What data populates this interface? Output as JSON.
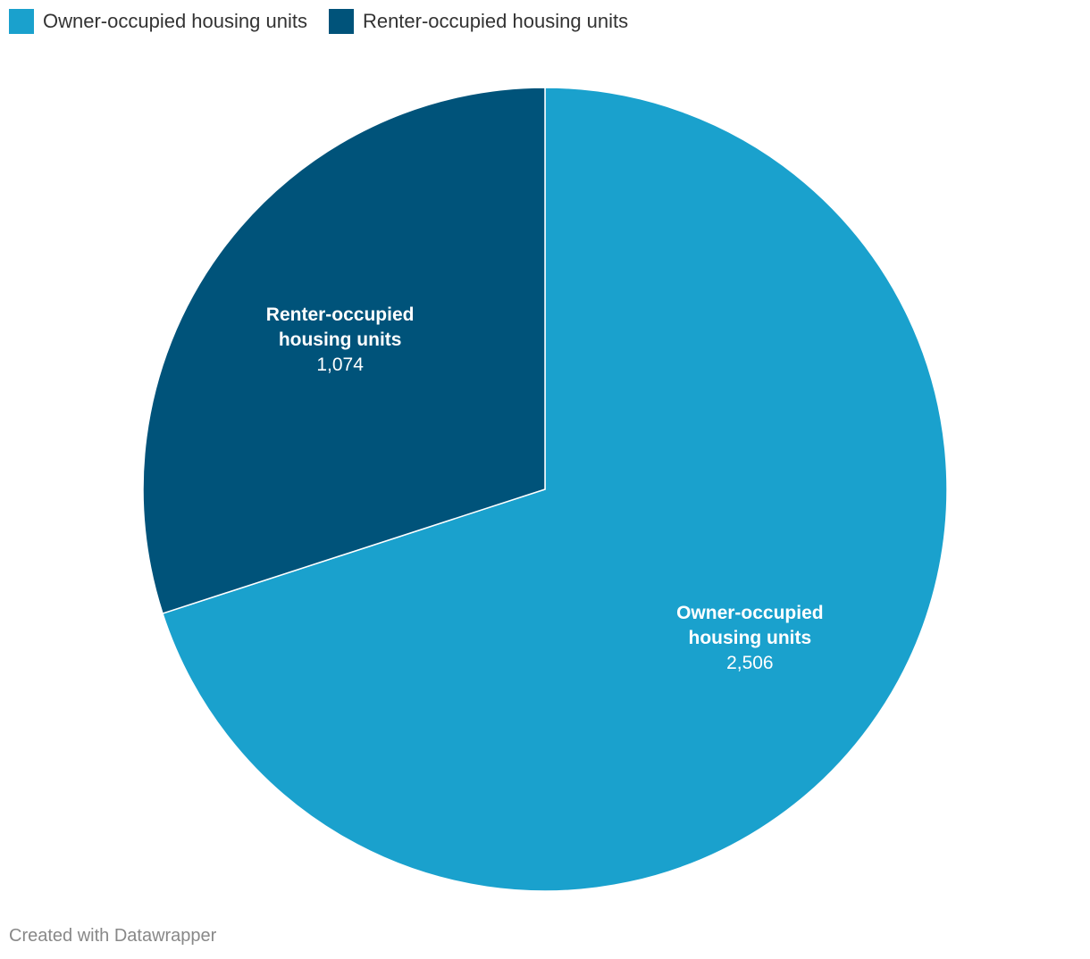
{
  "chart_data": {
    "type": "pie",
    "categories": [
      "Owner-occupied housing units",
      "Renter-occupied housing units"
    ],
    "values": [
      2506,
      1074
    ],
    "value_labels": [
      "2,506",
      "1,074"
    ],
    "colors": [
      "#1aa1cd",
      "#00537a"
    ],
    "legend": "top-left",
    "credit": "Created with Datawrapper"
  }
}
